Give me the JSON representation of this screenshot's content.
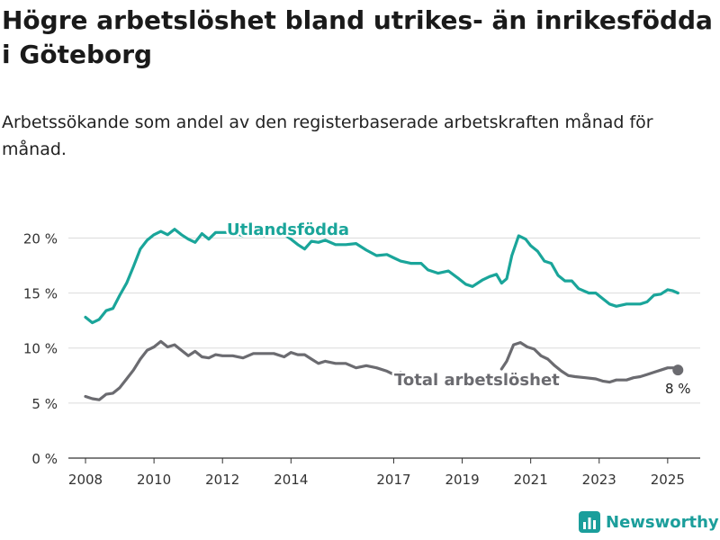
{
  "title": "Högre arbetslöshet bland utrikes- än inrikesfödda i Göteborg",
  "subtitle": "Arbetssökande som andel av den registerbaserade arbetskraften månad för månad.",
  "brand": {
    "name": "Newsworthy"
  },
  "colors": {
    "foreign": "#1aa59a",
    "total": "#6b6b70",
    "grid": "#dcdcdc",
    "axis": "#333333"
  },
  "chart_data": {
    "type": "line",
    "title": "Högre arbetslöshet bland utrikes- än inrikesfödda i Göteborg",
    "subtitle": "Arbetssökande som andel av den registerbaserade arbetskraften månad för månad.",
    "xlabel": "",
    "ylabel": "",
    "ylim": [
      0,
      22
    ],
    "xlim": [
      2007.5,
      2025.95
    ],
    "yticks": [
      0,
      5,
      10,
      15,
      20
    ],
    "ytick_labels": [
      "0 %",
      "5 %",
      "10 %",
      "15 %",
      "20 %"
    ],
    "xticks": [
      2008,
      2010,
      2012,
      2014,
      2017,
      2019,
      2021,
      2023,
      2025
    ],
    "xtick_labels": [
      "2008",
      "2010",
      "2012",
      "2014",
      "2017",
      "2019",
      "2021",
      "2023",
      "2025"
    ],
    "grid": true,
    "legend": "inline labels",
    "end_label": "8 %",
    "series": [
      {
        "name": "Utlandsfödda",
        "points": [
          [
            2008.0,
            12.8
          ],
          [
            2008.2,
            12.3
          ],
          [
            2008.4,
            12.6
          ],
          [
            2008.6,
            13.4
          ],
          [
            2008.8,
            13.6
          ],
          [
            2009.0,
            14.8
          ],
          [
            2009.2,
            15.9
          ],
          [
            2009.4,
            17.4
          ],
          [
            2009.6,
            19.0
          ],
          [
            2009.8,
            19.8
          ],
          [
            2010.0,
            20.3
          ],
          [
            2010.2,
            20.6
          ],
          [
            2010.4,
            20.3
          ],
          [
            2010.6,
            20.8
          ],
          [
            2010.8,
            20.3
          ],
          [
            2011.0,
            19.9
          ],
          [
            2011.2,
            19.6
          ],
          [
            2011.4,
            20.4
          ],
          [
            2011.6,
            19.9
          ],
          [
            2011.8,
            20.5
          ],
          [
            2012.0,
            20.5
          ],
          [
            2012.3,
            20.5
          ],
          [
            2012.6,
            20.2
          ],
          [
            2012.9,
            20.6
          ],
          [
            2013.2,
            20.2
          ],
          [
            2013.5,
            20.4
          ],
          [
            2013.8,
            20.3
          ],
          [
            2014.0,
            19.9
          ],
          [
            2014.2,
            19.4
          ],
          [
            2014.4,
            19.0
          ],
          [
            2014.6,
            19.7
          ],
          [
            2014.8,
            19.6
          ],
          [
            2015.0,
            19.8
          ],
          [
            2015.3,
            19.4
          ],
          [
            2015.6,
            19.4
          ],
          [
            2015.9,
            19.5
          ],
          [
            2016.2,
            18.9
          ],
          [
            2016.5,
            18.4
          ],
          [
            2016.8,
            18.5
          ],
          [
            2017.0,
            18.2
          ],
          [
            2017.2,
            17.9
          ],
          [
            2017.5,
            17.7
          ],
          [
            2017.8,
            17.7
          ],
          [
            2018.0,
            17.1
          ],
          [
            2018.3,
            16.8
          ],
          [
            2018.6,
            17.0
          ],
          [
            2018.9,
            16.3
          ],
          [
            2019.1,
            15.8
          ],
          [
            2019.3,
            15.6
          ],
          [
            2019.6,
            16.2
          ],
          [
            2019.8,
            16.5
          ],
          [
            2020.0,
            16.7
          ],
          [
            2020.15,
            15.9
          ],
          [
            2020.3,
            16.3
          ],
          [
            2020.45,
            18.4
          ],
          [
            2020.65,
            20.2
          ],
          [
            2020.85,
            19.9
          ],
          [
            2021.0,
            19.3
          ],
          [
            2021.2,
            18.8
          ],
          [
            2021.4,
            17.9
          ],
          [
            2021.6,
            17.7
          ],
          [
            2021.8,
            16.6
          ],
          [
            2022.0,
            16.1
          ],
          [
            2022.2,
            16.1
          ],
          [
            2022.4,
            15.4
          ],
          [
            2022.7,
            15.0
          ],
          [
            2022.9,
            15.0
          ],
          [
            2023.1,
            14.5
          ],
          [
            2023.3,
            14.0
          ],
          [
            2023.5,
            13.8
          ],
          [
            2023.8,
            14.0
          ],
          [
            2024.0,
            14.0
          ],
          [
            2024.2,
            14.0
          ],
          [
            2024.4,
            14.2
          ],
          [
            2024.6,
            14.8
          ],
          [
            2024.8,
            14.9
          ],
          [
            2025.0,
            15.3
          ],
          [
            2025.15,
            15.2
          ],
          [
            2025.3,
            15.0
          ]
        ]
      },
      {
        "name": "Total arbetslöshet",
        "points": [
          [
            2008.0,
            5.6
          ],
          [
            2008.2,
            5.4
          ],
          [
            2008.4,
            5.3
          ],
          [
            2008.6,
            5.8
          ],
          [
            2008.8,
            5.9
          ],
          [
            2009.0,
            6.4
          ],
          [
            2009.2,
            7.2
          ],
          [
            2009.4,
            8.0
          ],
          [
            2009.6,
            9.0
          ],
          [
            2009.8,
            9.8
          ],
          [
            2010.0,
            10.1
          ],
          [
            2010.2,
            10.6
          ],
          [
            2010.4,
            10.1
          ],
          [
            2010.6,
            10.3
          ],
          [
            2010.8,
            9.8
          ],
          [
            2011.0,
            9.3
          ],
          [
            2011.2,
            9.7
          ],
          [
            2011.4,
            9.2
          ],
          [
            2011.6,
            9.1
          ],
          [
            2011.8,
            9.4
          ],
          [
            2012.0,
            9.3
          ],
          [
            2012.3,
            9.3
          ],
          [
            2012.6,
            9.1
          ],
          [
            2012.9,
            9.5
          ],
          [
            2013.2,
            9.5
          ],
          [
            2013.5,
            9.5
          ],
          [
            2013.8,
            9.2
          ],
          [
            2014.0,
            9.6
          ],
          [
            2014.2,
            9.4
          ],
          [
            2014.4,
            9.4
          ],
          [
            2014.6,
            9.0
          ],
          [
            2014.8,
            8.6
          ],
          [
            2015.0,
            8.8
          ],
          [
            2015.3,
            8.6
          ],
          [
            2015.6,
            8.6
          ],
          [
            2015.9,
            8.2
          ],
          [
            2016.2,
            8.4
          ],
          [
            2016.5,
            8.2
          ],
          [
            2016.8,
            7.9
          ],
          [
            2017.0,
            7.6
          ],
          [
            2017.2,
            7.8
          ]
        ]
      },
      {
        "name": "",
        "points": [
          [
            2020.15,
            8.1
          ],
          [
            2020.3,
            8.8
          ],
          [
            2020.5,
            10.3
          ],
          [
            2020.7,
            10.5
          ],
          [
            2020.9,
            10.1
          ],
          [
            2021.1,
            9.9
          ],
          [
            2021.3,
            9.3
          ],
          [
            2021.5,
            9.0
          ],
          [
            2021.7,
            8.4
          ],
          [
            2021.9,
            7.9
          ],
          [
            2022.1,
            7.5
          ],
          [
            2022.3,
            7.4
          ],
          [
            2022.6,
            7.3
          ],
          [
            2022.9,
            7.2
          ],
          [
            2023.1,
            7.0
          ],
          [
            2023.3,
            6.9
          ],
          [
            2023.5,
            7.1
          ],
          [
            2023.8,
            7.1
          ],
          [
            2024.0,
            7.3
          ],
          [
            2024.2,
            7.4
          ],
          [
            2024.4,
            7.6
          ],
          [
            2024.6,
            7.8
          ],
          [
            2024.8,
            8.0
          ],
          [
            2025.0,
            8.2
          ],
          [
            2025.2,
            8.2
          ],
          [
            2025.3,
            8.0
          ]
        ]
      }
    ]
  }
}
